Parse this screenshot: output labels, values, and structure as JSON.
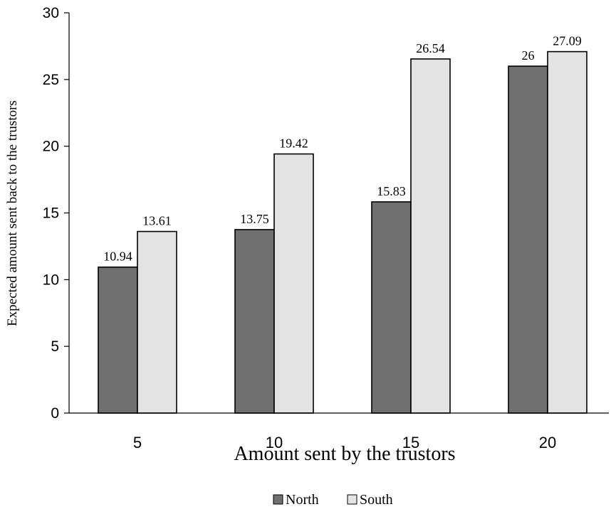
{
  "chart_data": {
    "type": "bar",
    "categories": [
      "5",
      "10",
      "15",
      "20"
    ],
    "series": [
      {
        "name": "North",
        "values": [
          10.94,
          13.75,
          15.83,
          26
        ],
        "color": "#707070"
      },
      {
        "name": "South",
        "values": [
          13.61,
          19.42,
          26.54,
          27.09
        ],
        "color": "#e3e3e3"
      }
    ],
    "data_labels": [
      [
        "10.94",
        "13.75",
        "15.83",
        "26"
      ],
      [
        "13.61",
        "19.42",
        "26.54",
        "27.09"
      ]
    ],
    "xlabel": "Amount sent by the trustors",
    "ylabel": "Expected amount sent back to the trustors",
    "ylim": [
      0,
      30
    ],
    "yticks": [
      "0",
      "5",
      "10",
      "15",
      "20",
      "25",
      "30"
    ],
    "grid": false,
    "legend_position": "bottom"
  }
}
